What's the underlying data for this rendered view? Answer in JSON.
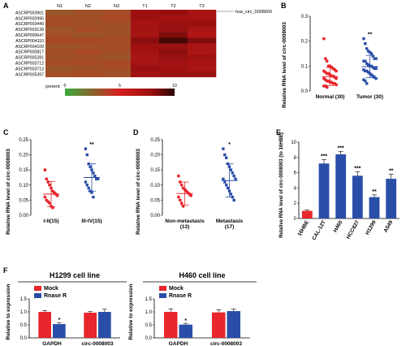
{
  "panels": {
    "A": {
      "letter": "A",
      "columns": [
        "N1",
        "N2",
        "N3",
        "T1",
        "T2",
        "T3"
      ],
      "rows": [
        "ASCRP003901",
        "ASCRP002995",
        "ASCRP003449",
        "ASCRP003139",
        "ASCRP000647",
        "ASCRP004110",
        "ASCRP004109",
        "ASCRP000817",
        "ASCRP005281",
        "ASCRP003712",
        "ASCRP003713",
        "ASCRP005397"
      ],
      "highlight_label": "hsa_circ_0008003",
      "colorbar_label": "present:",
      "colorbar_ticks": [
        "0",
        "5",
        "10"
      ]
    },
    "B": {
      "letter": "B",
      "ylabel": "Relative RNA level of circ-0008003",
      "star": "**"
    },
    "C": {
      "letter": "C",
      "ylabel": "Relative RNA level of circ-0008003",
      "star": "**"
    },
    "D": {
      "letter": "D",
      "ylabel": "Relative RNA level of circ-0008003",
      "star": "*"
    },
    "E": {
      "letter": "E",
      "ylabel": "Relative RNA level of circ-0008003 (to 16HBE)"
    },
    "F": {
      "letter": "F",
      "ylabel": "Relative to expression"
    },
    "G": {
      "ylabel": "Relative to expression"
    }
  },
  "colors": {
    "red": "#e8262c",
    "blue": "#2a4ea8",
    "heat_green": "#1f9a3a",
    "heat_red": "#cc1a1a",
    "heat_dark": "#3a0a0a"
  },
  "chart_data": [
    {
      "id": "A",
      "type": "heatmap",
      "columns": [
        "N1",
        "N2",
        "N3",
        "T1",
        "T2",
        "T3"
      ],
      "rows": [
        "ASCRP003901",
        "ASCRP002995",
        "ASCRP003449",
        "ASCRP003139",
        "ASCRP000647",
        "ASCRP004110",
        "ASCRP004109",
        "ASCRP000817",
        "ASCRP005281",
        "ASCRP003712",
        "ASCRP003713",
        "ASCRP005397"
      ],
      "values": [
        [
          3.0,
          3.2,
          3.4,
          7.6,
          8.0,
          7.2
        ],
        [
          3.3,
          3.3,
          3.5,
          7.8,
          7.4,
          7.3
        ],
        [
          3.4,
          3.2,
          3.3,
          7.2,
          7.8,
          7.9
        ],
        [
          3.1,
          3.4,
          3.2,
          7.5,
          7.9,
          7.1
        ],
        [
          3.3,
          3.1,
          3.2,
          7.3,
          8.4,
          6.8
        ],
        [
          3.5,
          3.5,
          3.4,
          8.2,
          9.5,
          8.4
        ],
        [
          3.1,
          3.2,
          3.4,
          7.6,
          7.7,
          7.0
        ],
        [
          3.3,
          3.5,
          3.3,
          7.4,
          8.2,
          6.9
        ],
        [
          3.2,
          3.3,
          3.1,
          7.1,
          7.9,
          7.6
        ],
        [
          3.4,
          3.4,
          3.5,
          7.3,
          7.5,
          7.2
        ],
        [
          3.1,
          3.2,
          3.3,
          7.9,
          7.6,
          7.1
        ],
        [
          3.3,
          3.4,
          3.2,
          7.5,
          7.9,
          7.7
        ]
      ],
      "color_range": [
        0,
        10
      ]
    },
    {
      "id": "B",
      "type": "scatter",
      "categories": [
        "Normal (30)",
        "Tumor (30)"
      ],
      "ylim": [
        0,
        0.3
      ],
      "yticks": [
        0.0,
        0.1,
        0.2,
        0.3
      ],
      "series": [
        {
          "name": "Normal (30)",
          "values": [
            0.21,
            0.13,
            0.12,
            0.1,
            0.1,
            0.095,
            0.09,
            0.085,
            0.08,
            0.08,
            0.075,
            0.07,
            0.07,
            0.065,
            0.06,
            0.06,
            0.055,
            0.05,
            0.05,
            0.045,
            0.04,
            0.04,
            0.035,
            0.035,
            0.03,
            0.03,
            0.025,
            0.02,
            0.02,
            0.015
          ],
          "mean": 0.058,
          "sd": 0.036
        },
        {
          "name": "Tumor (30)",
          "values": [
            0.21,
            0.19,
            0.17,
            0.16,
            0.155,
            0.15,
            0.14,
            0.13,
            0.13,
            0.12,
            0.12,
            0.11,
            0.105,
            0.1,
            0.1,
            0.095,
            0.09,
            0.09,
            0.085,
            0.08,
            0.08,
            0.075,
            0.07,
            0.065,
            0.06,
            0.055,
            0.05,
            0.045,
            0.04,
            0.03
          ],
          "mean": 0.098,
          "sd": 0.045
        }
      ]
    },
    {
      "id": "C",
      "type": "scatter",
      "categories": [
        "I-II(15)",
        "III-IV(15)"
      ],
      "ylim": [
        0,
        0.25
      ],
      "yticks": [
        0.0,
        0.05,
        0.1,
        0.15,
        0.2,
        0.25
      ],
      "series": [
        {
          "name": "I-II(15)",
          "values": [
            0.15,
            0.12,
            0.11,
            0.1,
            0.09,
            0.08,
            0.075,
            0.07,
            0.065,
            0.06,
            0.05,
            0.045,
            0.04,
            0.03,
            0.025
          ],
          "mean": 0.07,
          "sd": 0.042
        },
        {
          "name": "III-IV(15)",
          "values": [
            0.22,
            0.2,
            0.17,
            0.16,
            0.15,
            0.14,
            0.13,
            0.12,
            0.12,
            0.11,
            0.1,
            0.09,
            0.08,
            0.075,
            0.06
          ],
          "mean": 0.125,
          "sd": 0.045
        }
      ]
    },
    {
      "id": "D",
      "type": "scatter",
      "categories": [
        "Non-metastasis (13)",
        "Metastasis (17)"
      ],
      "ylim": [
        0,
        0.25
      ],
      "yticks": [
        0.0,
        0.05,
        0.1,
        0.15,
        0.2,
        0.25
      ],
      "series": [
        {
          "name": "Non-metastasis (13)",
          "values": [
            0.13,
            0.11,
            0.1,
            0.09,
            0.085,
            0.08,
            0.075,
            0.07,
            0.065,
            0.06,
            0.05,
            0.04,
            0.03
          ],
          "mean": 0.072,
          "sd": 0.038
        },
        {
          "name": "Metastasis (17)",
          "values": [
            0.22,
            0.2,
            0.19,
            0.17,
            0.16,
            0.15,
            0.14,
            0.13,
            0.12,
            0.12,
            0.11,
            0.1,
            0.09,
            0.08,
            0.07,
            0.06,
            0.05
          ],
          "mean": 0.115,
          "sd": 0.055
        }
      ]
    },
    {
      "id": "E",
      "type": "bar",
      "categories": [
        "16HBE",
        "CAL-12T",
        "H460",
        "HCC827",
        "H1299",
        "A549"
      ],
      "values": [
        1.0,
        7.2,
        8.4,
        5.6,
        2.8,
        5.2
      ],
      "errors": [
        0.1,
        0.5,
        0.4,
        0.5,
        0.3,
        0.6
      ],
      "stars": [
        "",
        "***",
        "***",
        "***",
        "**",
        "**"
      ],
      "ylim": [
        0,
        10
      ],
      "yticks": [
        0,
        2,
        4,
        6,
        8,
        10
      ]
    },
    {
      "id": "F",
      "type": "bar",
      "title": "H1299 cell line",
      "categories": [
        "GAPDH",
        "circ-0008003"
      ],
      "series": [
        {
          "name": "Mock",
          "values": [
            1.0,
            0.97
          ],
          "errors": [
            0.05,
            0.04
          ]
        },
        {
          "name": "Rnase R",
          "values": [
            0.53,
            1.0
          ],
          "errors": [
            0.06,
            0.1
          ]
        }
      ],
      "stars": [
        "*",
        ""
      ],
      "ylim": [
        0,
        1.5
      ],
      "yticks": [
        0.0,
        0.5,
        1.0,
        1.5
      ]
    },
    {
      "id": "G",
      "type": "bar",
      "title": "H460 cell line",
      "categories": [
        "GAPDH",
        "circ-0008003"
      ],
      "series": [
        {
          "name": "Mock",
          "values": [
            1.0,
            0.98
          ],
          "errors": [
            0.12,
            0.1
          ]
        },
        {
          "name": "Rnase R",
          "values": [
            0.51,
            1.03
          ],
          "errors": [
            0.05,
            0.08
          ]
        }
      ],
      "stars": [
        "*",
        ""
      ],
      "ylim": [
        0,
        1.5
      ],
      "yticks": [
        0.0,
        0.5,
        1.0,
        1.5
      ]
    }
  ]
}
